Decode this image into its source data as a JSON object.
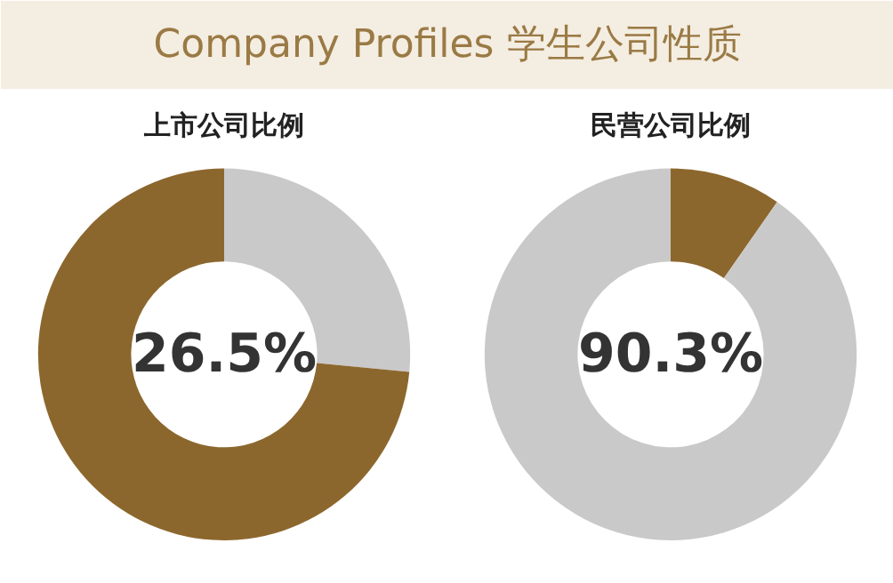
{
  "chart_data": [
    {
      "type": "donut",
      "title": "Company Profiles 学生公司性质",
      "subtitle": "上市公司比例",
      "categories": [
        null,
        null
      ],
      "values": [
        26.5,
        73.5
      ],
      "colors": [
        "#c9c9c9",
        "#8c672d"
      ],
      "annotations": [
        "26.5%"
      ]
    },
    {
      "type": "donut",
      "subtitle": "民营公司比例",
      "categories": [
        null,
        null
      ],
      "values": [
        9.7,
        90.3
      ],
      "colors": [
        "#8c672d",
        "#c9c9c9"
      ],
      "annotations": [
        "90.3%"
      ]
    }
  ]
}
